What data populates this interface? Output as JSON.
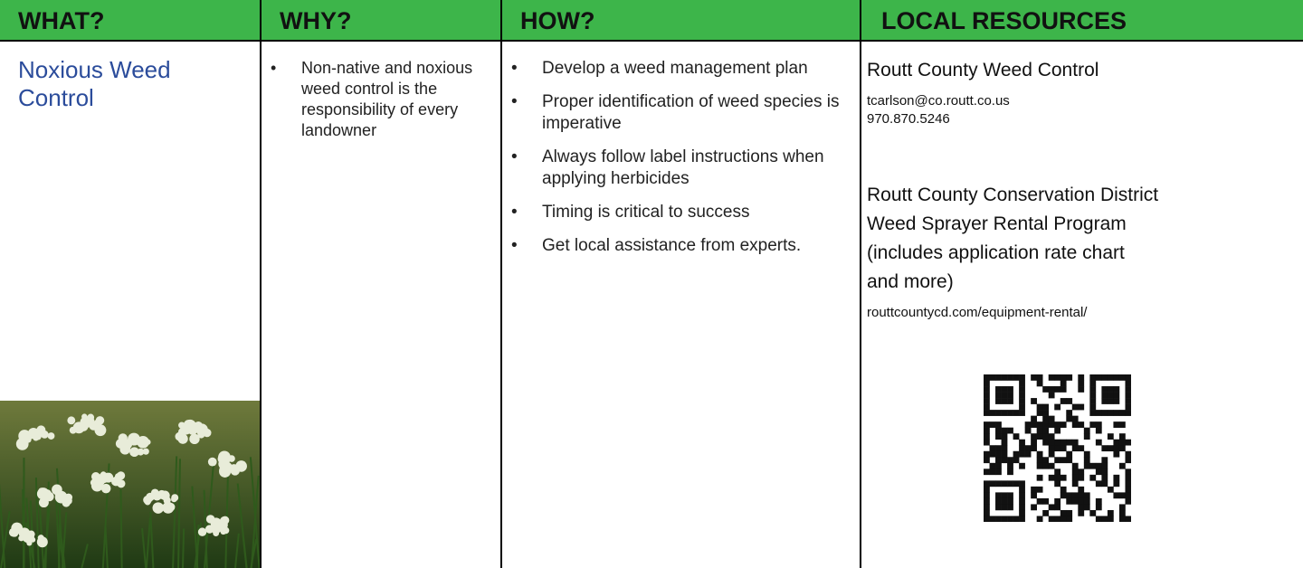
{
  "table": {
    "headers": [
      "WHAT?",
      "WHY?",
      "HOW?",
      "LOCAL RESOURCES"
    ],
    "what": "Noxious Weed Control",
    "why": [
      "Non-native and noxious weed control is the responsibility of every landowner"
    ],
    "how": [
      "Develop a weed management plan",
      "Proper identification of weed species is imperative",
      "Always follow label instructions when applying herbicides",
      "Timing is critical to success",
      "Get local assistance from experts."
    ],
    "resources": [
      {
        "name": [
          "Routt County Weed Control"
        ],
        "contact": [
          "tcarlson@co.routt.co.us",
          "970.870.5246"
        ]
      },
      {
        "name": [
          "Routt County Conservation District",
          "Weed Sprayer Rental Program",
          "(includes application rate chart",
          "and more)"
        ],
        "contact": [
          "routtcountycd.com/equipment-rental/"
        ]
      }
    ]
  }
}
